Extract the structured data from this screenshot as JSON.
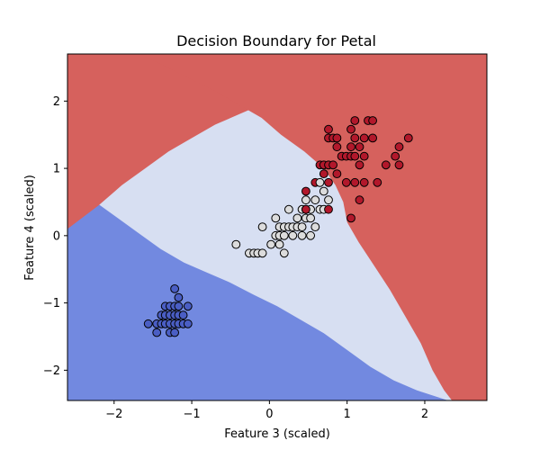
{
  "chart_data": {
    "type": "scatter",
    "title": "Decision Boundary for Petal",
    "xlabel": "Feature 3 (scaled)",
    "ylabel": "Feature 4 (scaled)",
    "xlim": [
      -2.6,
      2.8
    ],
    "ylim": [
      -2.45,
      2.7
    ],
    "xticks": [
      -2,
      -1,
      0,
      1,
      2
    ],
    "yticks": [
      -2,
      -1,
      0,
      1,
      2
    ],
    "xtick_labels": [
      "−2",
      "−1",
      "0",
      "1",
      "2"
    ],
    "ytick_labels": [
      "−2",
      "−1",
      "0",
      "1",
      "2"
    ],
    "grid": false,
    "legend": "none",
    "colors": {
      "region_class0": "#7289e0",
      "region_class1": "#d7dff2",
      "region_class2": "#d6615d",
      "point_class0": "#4a5ec4",
      "point_class1": "#dcdcdc",
      "point_class2": "#b2182b",
      "point_edge": "#000000"
    },
    "regions": [
      {
        "class": 0,
        "polygon": [
          [
            -2.6,
            -2.45
          ],
          [
            -2.6,
            0.8
          ],
          [
            -2.3,
            0.55
          ],
          [
            -2.0,
            0.3
          ],
          [
            -1.7,
            0.05
          ],
          [
            -1.4,
            -0.2
          ],
          [
            -1.1,
            -0.4
          ],
          [
            -0.8,
            -0.55
          ],
          [
            -0.5,
            -0.7
          ],
          [
            -0.2,
            -0.88
          ],
          [
            0.1,
            -1.05
          ],
          [
            0.4,
            -1.25
          ],
          [
            0.7,
            -1.45
          ],
          [
            1.0,
            -1.7
          ],
          [
            1.3,
            -1.95
          ],
          [
            1.6,
            -2.15
          ],
          [
            1.9,
            -2.3
          ],
          [
            2.3,
            -2.45
          ]
        ]
      },
      {
        "class": 2,
        "polygon": [
          [
            0.65,
            2.7
          ],
          [
            0.62,
            2.55
          ],
          [
            0.4,
            2.35
          ],
          [
            0.2,
            2.15
          ],
          [
            -0.1,
            1.95
          ],
          [
            -0.4,
            1.8
          ],
          [
            -0.7,
            1.65
          ],
          [
            -1.0,
            1.45
          ],
          [
            -1.3,
            1.25
          ],
          [
            -1.6,
            1.0
          ],
          [
            -1.9,
            0.75
          ],
          [
            -2.2,
            0.45
          ],
          [
            -2.6,
            0.1
          ],
          [
            -2.6,
            2.7
          ]
        ]
      },
      {
        "class": 2,
        "polygon": [
          [
            -1.68,
            2.7
          ],
          [
            -1.4,
            2.55
          ],
          [
            -1.05,
            2.35
          ],
          [
            -0.7,
            2.15
          ],
          [
            -0.4,
            1.95
          ],
          [
            -0.1,
            1.75
          ],
          [
            0.15,
            1.5
          ],
          [
            0.45,
            1.25
          ],
          [
            0.7,
            1.0
          ],
          [
            0.85,
            0.75
          ],
          [
            0.95,
            0.5
          ],
          [
            1.0,
            0.2
          ],
          [
            1.15,
            -0.1
          ],
          [
            1.35,
            -0.45
          ],
          [
            1.55,
            -0.8
          ],
          [
            1.75,
            -1.2
          ],
          [
            1.95,
            -1.6
          ],
          [
            2.1,
            -2.0
          ],
          [
            2.25,
            -2.3
          ],
          [
            2.35,
            -2.45
          ],
          [
            2.8,
            -2.45
          ],
          [
            2.8,
            2.7
          ]
        ]
      }
    ],
    "series": [
      {
        "class": 0,
        "points": [
          [
            -1.56,
            -1.31
          ],
          [
            -1.45,
            -1.44
          ],
          [
            -1.45,
            -1.31
          ],
          [
            -1.39,
            -1.31
          ],
          [
            -1.39,
            -1.18
          ],
          [
            -1.34,
            -1.31
          ],
          [
            -1.34,
            -1.18
          ],
          [
            -1.34,
            -1.05
          ],
          [
            -1.28,
            -1.44
          ],
          [
            -1.28,
            -1.31
          ],
          [
            -1.28,
            -1.18
          ],
          [
            -1.28,
            -1.05
          ],
          [
            -1.22,
            -1.44
          ],
          [
            -1.22,
            -1.31
          ],
          [
            -1.22,
            -1.18
          ],
          [
            -1.22,
            -1.05
          ],
          [
            -1.22,
            -0.79
          ],
          [
            -1.17,
            -1.31
          ],
          [
            -1.17,
            -1.18
          ],
          [
            -1.17,
            -1.05
          ],
          [
            -1.17,
            -0.92
          ],
          [
            -1.11,
            -1.31
          ],
          [
            -1.11,
            -1.18
          ],
          [
            -1.05,
            -1.31
          ],
          [
            -1.05,
            -1.05
          ]
        ]
      },
      {
        "class": 1,
        "points": [
          [
            -0.43,
            -0.13
          ],
          [
            -0.26,
            -0.26
          ],
          [
            -0.2,
            -0.26
          ],
          [
            -0.15,
            -0.26
          ],
          [
            -0.09,
            -0.26
          ],
          [
            -0.09,
            0.13
          ],
          [
            0.02,
            -0.13
          ],
          [
            0.08,
            0.0
          ],
          [
            0.08,
            0.26
          ],
          [
            0.13,
            -0.13
          ],
          [
            0.13,
            0.0
          ],
          [
            0.13,
            0.13
          ],
          [
            0.19,
            -0.26
          ],
          [
            0.19,
            0.0
          ],
          [
            0.19,
            0.13
          ],
          [
            0.25,
            0.13
          ],
          [
            0.25,
            0.39
          ],
          [
            0.3,
            0.0
          ],
          [
            0.3,
            0.13
          ],
          [
            0.36,
            0.13
          ],
          [
            0.36,
            0.26
          ],
          [
            0.42,
            0.0
          ],
          [
            0.42,
            0.13
          ],
          [
            0.42,
            0.39
          ],
          [
            0.47,
            0.26
          ],
          [
            0.47,
            0.39
          ],
          [
            0.47,
            0.53
          ],
          [
            0.53,
            0.0
          ],
          [
            0.53,
            0.26
          ],
          [
            0.53,
            0.39
          ],
          [
            0.59,
            0.13
          ],
          [
            0.59,
            0.53
          ],
          [
            0.65,
            0.39
          ],
          [
            0.7,
            0.39
          ],
          [
            0.7,
            0.66
          ],
          [
            0.76,
            0.53
          ]
        ]
      },
      {
        "class": 2,
        "points": [
          [
            0.47,
            0.66
          ],
          [
            0.59,
            0.79
          ],
          [
            0.65,
            1.05
          ],
          [
            0.7,
            0.92
          ],
          [
            0.7,
            1.05
          ],
          [
            0.76,
            0.79
          ],
          [
            0.76,
            1.05
          ],
          [
            0.76,
            1.45
          ],
          [
            0.76,
            1.58
          ],
          [
            0.82,
            1.05
          ],
          [
            0.82,
            1.45
          ],
          [
            0.87,
            0.92
          ],
          [
            0.87,
            1.32
          ],
          [
            0.87,
            1.45
          ],
          [
            0.93,
            1.18
          ],
          [
            0.99,
            0.79
          ],
          [
            0.99,
            1.18
          ],
          [
            1.05,
            0.26
          ],
          [
            1.05,
            1.18
          ],
          [
            1.05,
            1.32
          ],
          [
            1.05,
            1.58
          ],
          [
            1.1,
            0.79
          ],
          [
            1.1,
            1.18
          ],
          [
            1.1,
            1.45
          ],
          [
            1.1,
            1.71
          ],
          [
            1.16,
            0.53
          ],
          [
            1.16,
            1.05
          ],
          [
            1.16,
            1.32
          ],
          [
            1.22,
            0.79
          ],
          [
            1.22,
            1.18
          ],
          [
            1.22,
            1.45
          ],
          [
            1.27,
            1.71
          ],
          [
            1.33,
            1.45
          ],
          [
            1.33,
            1.71
          ],
          [
            1.39,
            0.79
          ],
          [
            1.5,
            1.05
          ],
          [
            1.62,
            1.18
          ],
          [
            1.67,
            1.05
          ],
          [
            1.67,
            1.32
          ],
          [
            1.79,
            1.45
          ]
        ]
      },
      {
        "class": 1,
        "points": [
          [
            0.65,
            0.79
          ]
        ]
      },
      {
        "class": 2,
        "points": [
          [
            0.76,
            0.39
          ],
          [
            0.47,
            0.39
          ]
        ]
      }
    ]
  }
}
